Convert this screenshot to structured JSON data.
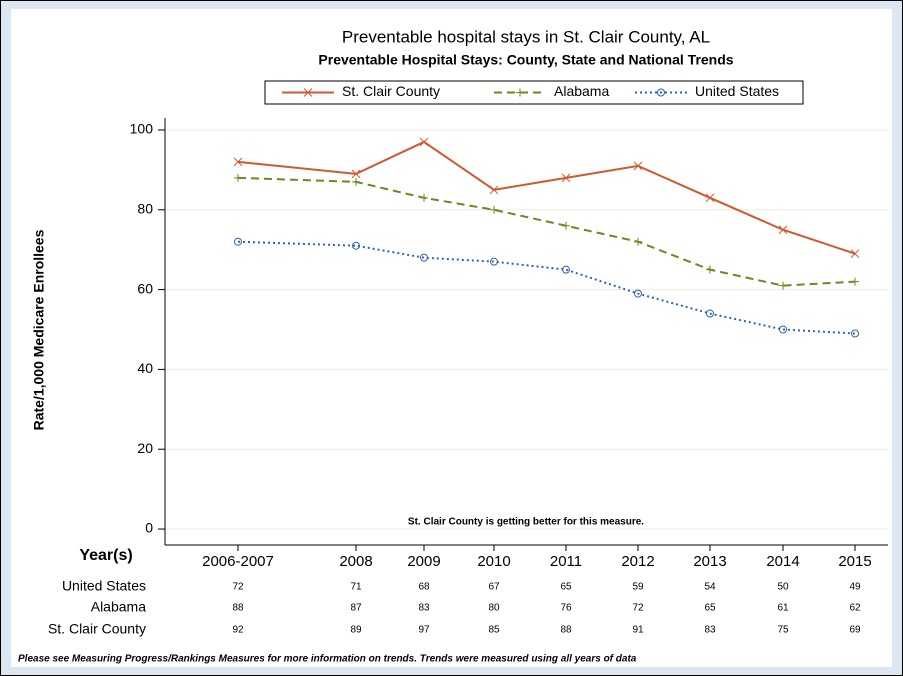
{
  "chart_data": {
    "type": "line",
    "title": "Preventable hospital stays in St. Clair County, AL",
    "subtitle": "Preventable Hospital Stays: County, State and National Trends",
    "y_label": "Rate/1,000 Medicare Enrollees",
    "x_label": "Year(s)",
    "categories": [
      "2006-2007",
      "2008",
      "2009",
      "2010",
      "2011",
      "2012",
      "2013",
      "2014",
      "2015"
    ],
    "series": [
      {
        "name": "St. Clair County",
        "color": "#d2582c",
        "marker": "x",
        "dash": "solid",
        "values": [
          92,
          89,
          97,
          85,
          88,
          91,
          83,
          75,
          69
        ]
      },
      {
        "name": "Alabama",
        "color": "#6b8a1f",
        "marker": "+",
        "dash": "dashed",
        "values": [
          88,
          87,
          83,
          80,
          76,
          72,
          65,
          61,
          62
        ]
      },
      {
        "name": "United States",
        "color": "#2f63a8",
        "marker": "o",
        "dash": "dotted",
        "values": [
          72,
          71,
          68,
          67,
          65,
          59,
          54,
          50,
          49
        ]
      }
    ],
    "ylim": [
      -4,
      103
    ],
    "yticks": [
      0,
      20,
      40,
      60,
      80,
      100
    ],
    "grid": true,
    "annotation": "St. Clair County is getting better for this measure.",
    "footnote": "Please see Measuring Progress/Rankings Measures for more information on trends. Trends were measured using all years of data"
  }
}
